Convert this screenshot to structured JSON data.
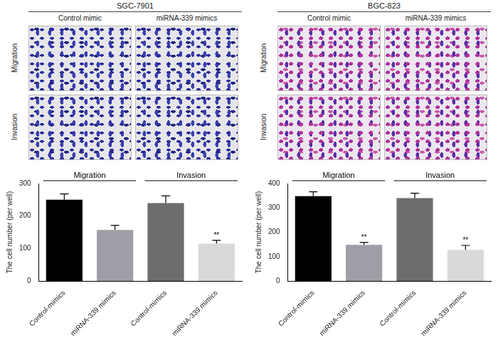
{
  "figures": [
    {
      "title": "SGC-7901",
      "columns": [
        "Control mimic",
        "miRNA-339 mimics"
      ],
      "rows": [
        "Migration",
        "Invasion"
      ]
    },
    {
      "title": "BGC-823",
      "columns": [
        "Control mimic",
        "miRNA-339 mimics"
      ],
      "rows": [
        "Migration",
        "Invasion"
      ]
    }
  ],
  "chart_data": [
    {
      "type": "bar",
      "y_label": "The cell number (per well)",
      "categories": [
        "Control-mimics",
        "miRNA-339 mimics",
        "Control-mimics",
        "miRNA-339 mimics"
      ],
      "values": [
        250,
        157,
        240,
        115
      ],
      "errors": [
        18,
        14,
        22,
        10
      ],
      "colors": [
        "#000000",
        "#9e9ea6",
        "#6d6d6d",
        "#d9d9d9"
      ],
      "groups": [
        {
          "label": "Migration",
          "start": 0,
          "end": 1
        },
        {
          "label": "Invasion",
          "start": 2,
          "end": 3
        }
      ],
      "significance": [
        null,
        null,
        null,
        "**"
      ],
      "ylim": [
        0,
        300
      ],
      "yticks": [
        0,
        100,
        200,
        300
      ],
      "grid": false
    },
    {
      "type": "bar",
      "y_label": "The cell number (per well)",
      "categories": [
        "Control-mimics",
        "miRNA-339 mimics",
        "Control-mimics",
        "miRNA-339 mimics"
      ],
      "values": [
        348,
        148,
        340,
        128
      ],
      "errors": [
        18,
        10,
        20,
        18
      ],
      "colors": [
        "#000000",
        "#9e9ea6",
        "#6d6d6d",
        "#d9d9d9"
      ],
      "groups": [
        {
          "label": "Migration",
          "start": 0,
          "end": 1
        },
        {
          "label": "Invasion",
          "start": 2,
          "end": 3
        }
      ],
      "significance": [
        null,
        "**",
        null,
        "**"
      ],
      "ylim": [
        0,
        400
      ],
      "yticks": [
        0,
        100,
        200,
        300,
        400
      ],
      "grid": false
    }
  ]
}
